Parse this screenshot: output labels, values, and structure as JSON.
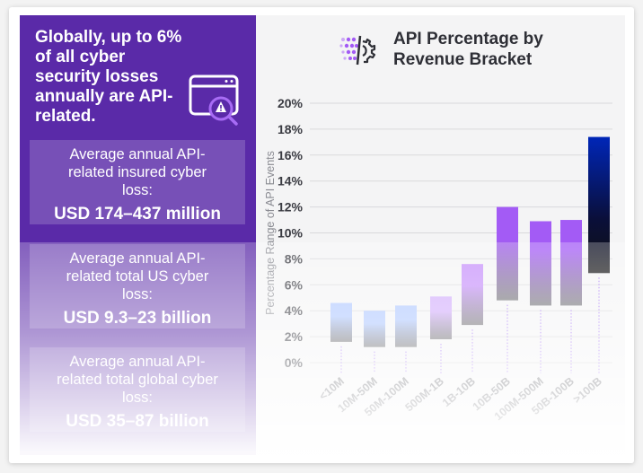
{
  "left_panel": {
    "headline": "Globally, up to 6% of all cyber security losses annually are API-related.",
    "stats": [
      {
        "label": "Average annual API-related insured cyber loss:",
        "value": "USD 174–437 million"
      },
      {
        "label": "Average annual API-related total US cyber loss:",
        "value": "USD 9.3–23 billion"
      },
      {
        "label": "Average annual API-related total global cyber loss:",
        "value": "USD 35–87 billion"
      }
    ]
  },
  "colors": {
    "panel": "#5a2aa8",
    "blue_bar": "#aac4ff",
    "purple_bar": "#a35bf5",
    "dark_bar": "#0026b8"
  },
  "chart_data": {
    "type": "bar",
    "subtype": "floating-range",
    "title": "API Percentage by Revenue Bracket",
    "xlabel": "",
    "ylabel": "Percentage Range  of API Events",
    "ylim": [
      0,
      20
    ],
    "yticks": [
      "0%",
      "2%",
      "4%",
      "6%",
      "8%",
      "10%",
      "12%",
      "14%",
      "16%",
      "18%",
      "20%"
    ],
    "grid": true,
    "categories": [
      "<10M",
      "10M-50M",
      "50M-100M",
      "500M-1B",
      "1B-10B",
      "10B-50B",
      "100M-500M",
      "50B-100B",
      ">100B"
    ],
    "low": [
      1.6,
      1.2,
      1.2,
      1.8,
      2.9,
      4.8,
      4.4,
      4.4,
      6.9
    ],
    "high": [
      4.6,
      4.0,
      4.4,
      5.1,
      7.6,
      12.0,
      10.9,
      11.0,
      17.4
    ],
    "bar_colors": [
      "#aac4ff",
      "#aac4ff",
      "#aac4ff",
      "#cfa8fb",
      "#c48cfb",
      "#a35bf5",
      "#a35bf5",
      "#a35bf5",
      "#0026b8"
    ]
  }
}
